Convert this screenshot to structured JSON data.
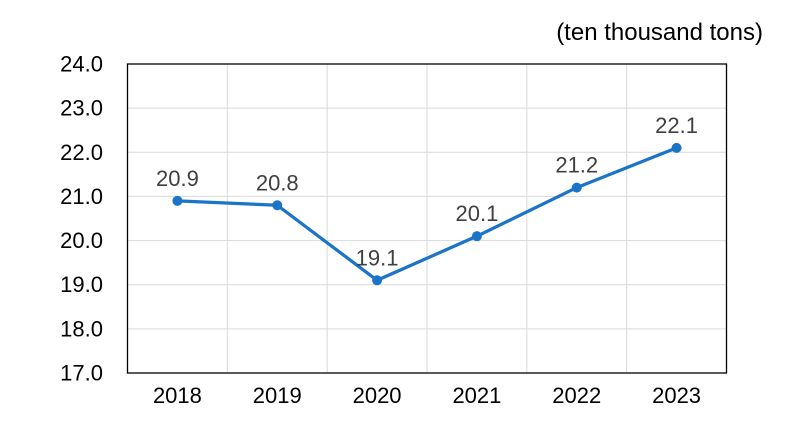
{
  "chart_data": {
    "type": "line",
    "title": "(ten thousand tons)",
    "categories": [
      "2018",
      "2019",
      "2020",
      "2021",
      "2022",
      "2023"
    ],
    "values": [
      20.9,
      20.8,
      19.1,
      20.1,
      21.2,
      22.1
    ],
    "point_labels": [
      "20.9",
      "20.8",
      "19.1",
      "20.1",
      "21.2",
      "22.1"
    ],
    "xlabel": "",
    "ylabel": "",
    "ylim": [
      17.0,
      24.0
    ],
    "y_tick_values": [
      17,
      18,
      19,
      20,
      21,
      22,
      23,
      24
    ],
    "y_tick_labels": [
      "17.0",
      "18.0",
      "19.0",
      "20.0",
      "21.0",
      "22.0",
      "23.0",
      "24.0"
    ],
    "grid": true,
    "legend_position": "none",
    "colors": {
      "line": "#1B74C8",
      "marker": "#1B74C8",
      "gridline": "#D9D9D9",
      "plot_border": "#000000",
      "axis_text": "#000000",
      "data_label_text": "#404040",
      "background": "#FFFFFF"
    }
  }
}
